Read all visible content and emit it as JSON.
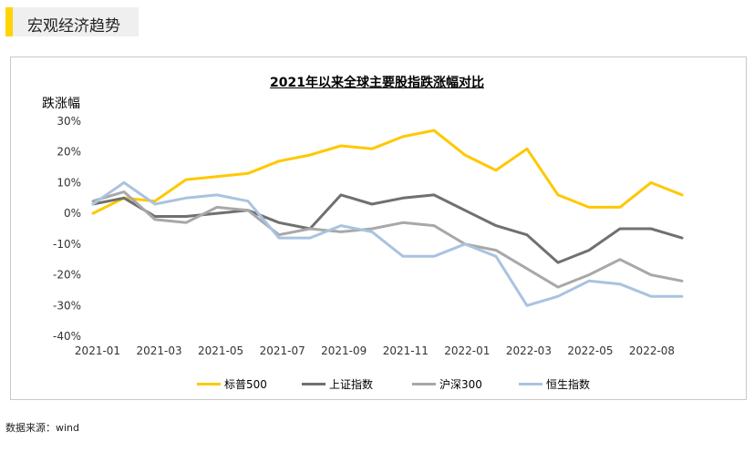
{
  "header": {
    "title": "宏观经济趋势"
  },
  "source": "数据来源：wind",
  "colors": {
    "sp500": "#ffc800",
    "shanghai": "#707070",
    "csi300": "#a8a8a8",
    "hsi": "#a9c3e0",
    "accent": "#ffd400"
  },
  "chart_data": {
    "type": "line",
    "title": "2021年以来全球主要股指跌涨幅对比",
    "ylabel": "跌涨幅",
    "xlabel": "",
    "ylim": [
      -40,
      30
    ],
    "yticks": [
      "30%",
      "20%",
      "10%",
      "0%",
      "-10%",
      "-20%",
      "-30%",
      "-40%"
    ],
    "xticks": [
      "2021-01",
      "2021-03",
      "2021-05",
      "2021-07",
      "2021-09",
      "2021-11",
      "2022-01",
      "2022-03",
      "2022-05",
      "2022-08"
    ],
    "grid": false,
    "legend_position": "bottom",
    "x": [
      "2021-01",
      "2021-02",
      "2021-03",
      "2021-04",
      "2021-05",
      "2021-06",
      "2021-07",
      "2021-08",
      "2021-09",
      "2021-10",
      "2021-11",
      "2021-12",
      "2022-01",
      "2022-02",
      "2022-03",
      "2022-04",
      "2022-05",
      "2022-06",
      "2022-07",
      "2022-08"
    ],
    "series": [
      {
        "name": "标普500",
        "color": "#ffc800",
        "values": [
          0,
          5,
          4,
          11,
          12,
          13,
          17,
          19,
          22,
          21,
          25,
          27,
          19,
          14,
          21,
          6,
          2,
          2,
          10,
          6
        ]
      },
      {
        "name": "上证指数",
        "color": "#707070",
        "values": [
          3,
          5,
          -1,
          -1,
          0,
          1,
          -3,
          -5,
          6,
          3,
          5,
          6,
          1,
          -4,
          -7,
          -16,
          -12,
          -5,
          -5,
          -8
        ]
      },
      {
        "name": "沪深300",
        "color": "#a8a8a8",
        "values": [
          4,
          7,
          -2,
          -3,
          2,
          1,
          -7,
          -5,
          -6,
          -5,
          -3,
          -4,
          -10,
          -12,
          -18,
          -24,
          -20,
          -15,
          -20,
          -22
        ]
      },
      {
        "name": "恒生指数",
        "color": "#a9c3e0",
        "values": [
          3,
          10,
          3,
          5,
          6,
          4,
          -8,
          -8,
          -4,
          -6,
          -14,
          -14,
          -10,
          -14,
          -30,
          -27,
          -22,
          -23,
          -27,
          -27
        ]
      }
    ]
  }
}
